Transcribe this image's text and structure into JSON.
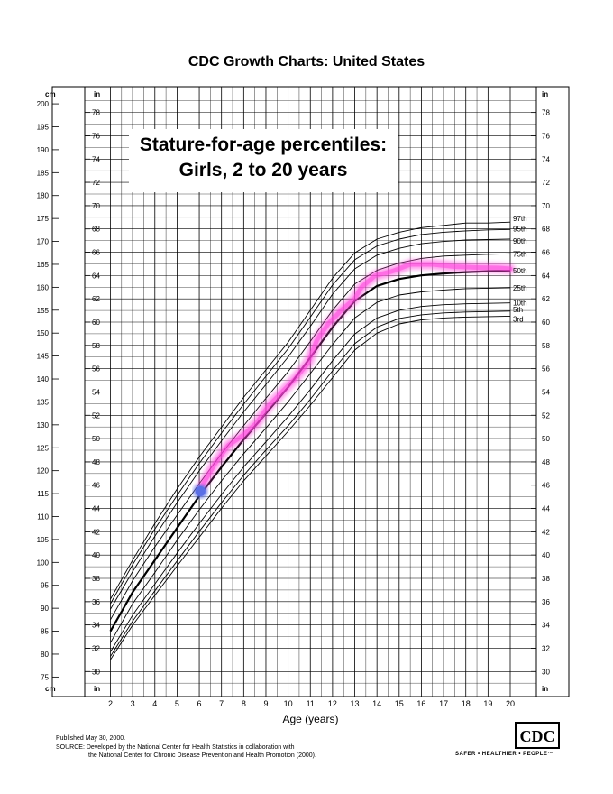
{
  "header": {
    "title": "CDC Growth Charts: United States"
  },
  "chart_data": {
    "type": "line",
    "title": "Stature-for-age percentiles:",
    "subtitle": "Girls, 2 to 20 years",
    "xlabel": "Age (years)",
    "xlim": [
      2,
      20
    ],
    "x_ticks": [
      "2",
      "3",
      "4",
      "5",
      "6",
      "7",
      "8",
      "9",
      "10",
      "11",
      "12",
      "13",
      "14",
      "15",
      "16",
      "17",
      "18",
      "19",
      "20"
    ],
    "ylim_cm": [
      75,
      200
    ],
    "ylim_in": [
      30,
      78
    ],
    "y_unit_left": "cm",
    "y_unit_right": "in",
    "cm_ticks": [
      "75",
      "80",
      "85",
      "90",
      "95",
      "100",
      "105",
      "110",
      "115",
      "120",
      "125",
      "130",
      "135",
      "140",
      "145",
      "150",
      "155",
      "160",
      "165",
      "170",
      "175",
      "180",
      "185",
      "190",
      "195",
      "200"
    ],
    "in_ticks": [
      "30",
      "32",
      "34",
      "36",
      "38",
      "40",
      "42",
      "44",
      "46",
      "48",
      "50",
      "52",
      "54",
      "56",
      "58",
      "60",
      "62",
      "64",
      "66",
      "68",
      "70",
      "72",
      "74",
      "76",
      "78"
    ],
    "grid": true,
    "x": [
      2,
      3,
      4,
      5,
      6,
      7,
      8,
      9,
      10,
      11,
      12,
      13,
      14,
      15,
      16,
      17,
      18,
      19,
      20
    ],
    "series": [
      {
        "name": "97th",
        "values": [
          92.0,
          100.5,
          108.5,
          116.0,
          123.0,
          129.5,
          136.0,
          142.0,
          148.0,
          155.0,
          162.0,
          167.5,
          170.5,
          172.0,
          173.0,
          173.5,
          174.0,
          174.0,
          174.2
        ]
      },
      {
        "name": "95th",
        "values": [
          91.0,
          99.5,
          107.3,
          114.6,
          121.6,
          128.2,
          134.5,
          140.6,
          146.6,
          153.5,
          160.5,
          166.0,
          169.0,
          170.5,
          171.5,
          172.0,
          172.3,
          172.5,
          172.6
        ]
      },
      {
        "name": "90th",
        "values": [
          89.8,
          98.0,
          105.7,
          113.0,
          120.0,
          126.5,
          132.8,
          138.8,
          144.8,
          151.5,
          158.5,
          164.0,
          167.0,
          168.5,
          169.5,
          170.0,
          170.3,
          170.4,
          170.5
        ]
      },
      {
        "name": "75th",
        "values": [
          87.5,
          96.0,
          103.4,
          110.3,
          117.2,
          123.7,
          129.8,
          135.8,
          141.6,
          148.2,
          155.0,
          160.7,
          163.7,
          165.3,
          166.3,
          166.8,
          167.0,
          167.2,
          167.3
        ]
      },
      {
        "name": "50th",
        "values": [
          85.0,
          93.5,
          100.5,
          107.5,
          114.5,
          120.8,
          126.8,
          132.5,
          138.2,
          144.7,
          151.3,
          157.0,
          160.3,
          161.8,
          162.6,
          163.0,
          163.3,
          163.5,
          163.6
        ]
      },
      {
        "name": "25th",
        "values": [
          82.5,
          91.0,
          97.8,
          104.8,
          111.5,
          117.8,
          123.7,
          129.3,
          135.0,
          141.2,
          147.5,
          153.3,
          156.7,
          158.3,
          159.0,
          159.4,
          159.7,
          159.8,
          159.9
        ]
      },
      {
        "name": "10th",
        "values": [
          80.5,
          88.5,
          95.3,
          102.0,
          108.5,
          114.8,
          120.8,
          126.3,
          131.8,
          137.7,
          144.0,
          149.8,
          153.3,
          155.0,
          155.8,
          156.2,
          156.4,
          156.5,
          156.6
        ]
      },
      {
        "name": "5th",
        "values": [
          79.5,
          87.2,
          93.8,
          100.3,
          106.8,
          113.0,
          119.0,
          124.5,
          129.8,
          135.6,
          141.8,
          147.7,
          151.3,
          153.2,
          154.0,
          154.4,
          154.6,
          154.7,
          154.8
        ]
      },
      {
        "name": "3rd",
        "values": [
          78.8,
          86.3,
          92.8,
          99.2,
          105.5,
          111.8,
          117.8,
          123.2,
          128.6,
          134.3,
          140.3,
          146.3,
          150.0,
          152.0,
          152.9,
          153.3,
          153.5,
          153.6,
          153.7
        ]
      }
    ],
    "highlight_path": {
      "color": "#ff44dd",
      "points": [
        [
          6.1,
          116.5
        ],
        [
          6.7,
          121.5
        ],
        [
          7.3,
          125.5
        ],
        [
          8.0,
          127.8
        ],
        [
          8.6,
          130.5
        ],
        [
          9.1,
          134.0
        ],
        [
          9.7,
          137.0
        ],
        [
          10.3,
          140.0
        ],
        [
          10.9,
          143.5
        ],
        [
          11.3,
          148.5
        ],
        [
          11.8,
          152.0
        ],
        [
          12.4,
          155.0
        ],
        [
          13.0,
          157.5
        ],
        [
          13.3,
          160.0
        ],
        [
          13.9,
          162.5
        ],
        [
          14.7,
          163.5
        ],
        [
          15.5,
          165.0
        ],
        [
          16.5,
          165.0
        ],
        [
          17.5,
          164.5
        ],
        [
          18.5,
          164.3
        ],
        [
          19.5,
          164.2
        ],
        [
          20.0,
          164.0
        ]
      ]
    },
    "marker": {
      "color": "#5b6fe6",
      "x": 6.05,
      "y": 115.5
    }
  },
  "footer": {
    "published": "Published May 30, 2000.",
    "source_line1": "SOURCE: Developed by the National Center for Health Statistics in collaboration with",
    "source_line2": "the National Center for Chronic Disease Prevention and Health Promotion (2000).",
    "logo_text": "CDC",
    "tagline": "SAFER • HEALTHIER • PEOPLE™"
  }
}
